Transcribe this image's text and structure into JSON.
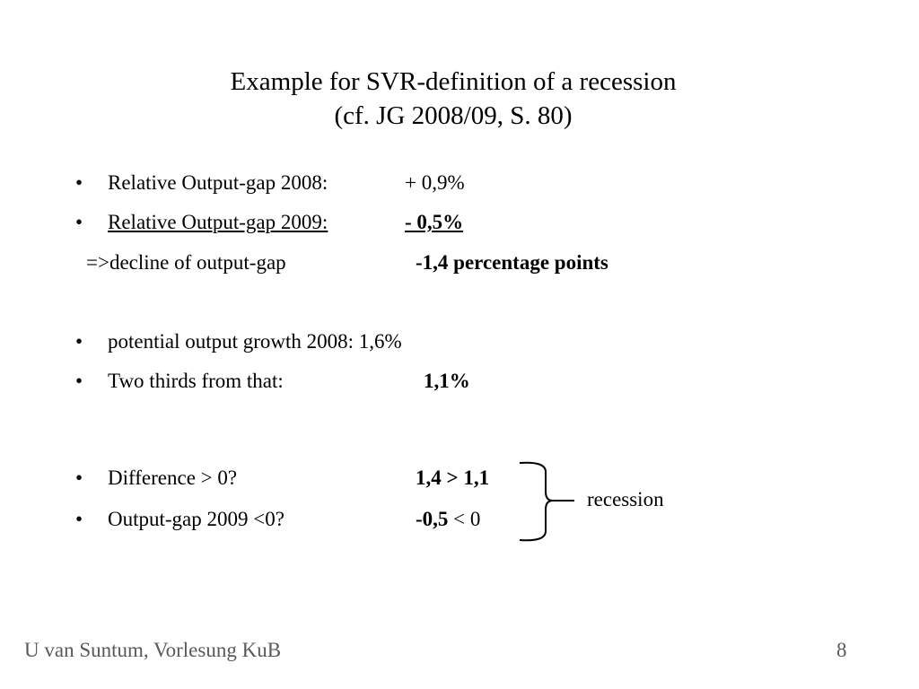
{
  "title": {
    "line1": "Example for SVR-definition of a recession",
    "line2": "(cf. JG 2008/09, S. 80)"
  },
  "content": {
    "bullet_char": "•",
    "item1": {
      "label": "Relative Output-gap 2008:",
      "value": "+ 0,9%"
    },
    "item2": {
      "label": "Relative Output-gap 2009:",
      "value": "-  0,5%"
    },
    "conclusion": {
      "label": "=>decline of output-gap",
      "value": "-1,4  percentage points"
    },
    "item3": {
      "label": "potential output growth 2008: 1,6%"
    },
    "item4": {
      "label": "Two thirds from that:",
      "value": "1,1%"
    },
    "item5": {
      "label": "Difference > 0?",
      "value": "1,4 > 1,1"
    },
    "item6": {
      "label": "Output-gap 2009 <0?",
      "value_bold": "-0,5",
      "value_rest": " < 0"
    },
    "brace_label": "recession"
  },
  "footer": {
    "author": "U van Suntum, Vorlesung KuB",
    "page_number": "8"
  }
}
